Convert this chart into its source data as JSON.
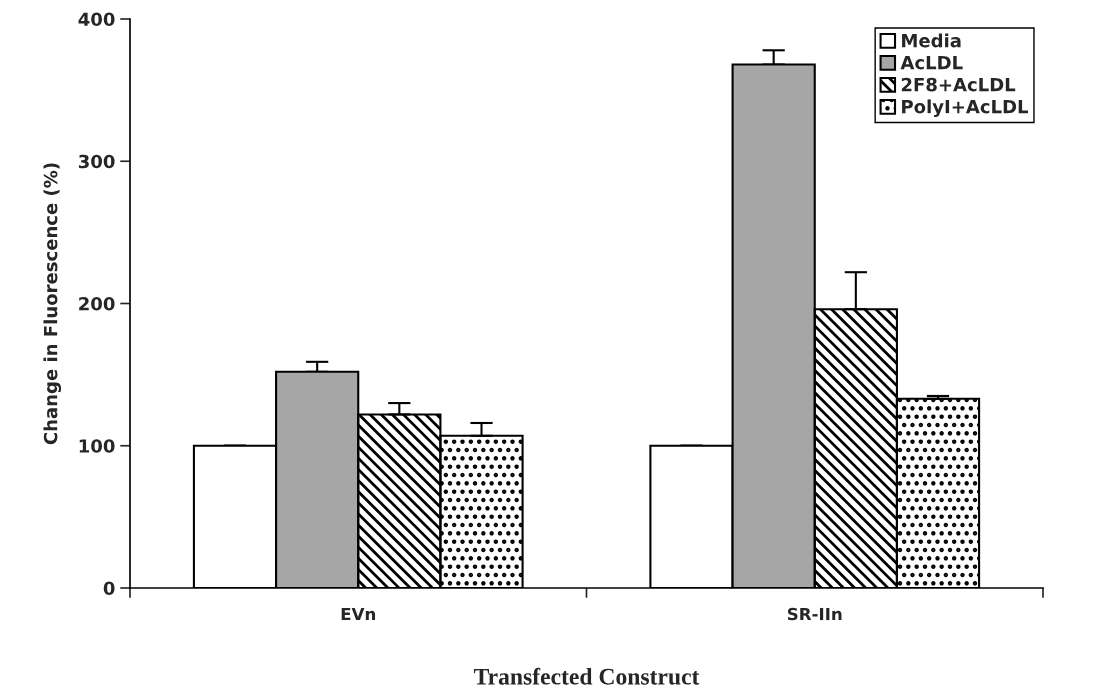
{
  "chart_data": {
    "type": "bar",
    "xlabel": "Transfected Construct",
    "ylabel": "Change in Fluorescence (%)",
    "categories": [
      "EVn",
      "SR-IIn"
    ],
    "series": [
      {
        "name": "Media",
        "color": "#ffffff",
        "values": [
          100,
          100
        ],
        "errors": [
          0,
          0
        ]
      },
      {
        "name": "AcLDL",
        "color": "#a6a6a6",
        "values": [
          152,
          368
        ],
        "errors": [
          7,
          10
        ]
      },
      {
        "name": "2F8+AcLDL",
        "color": "#000000",
        "values": [
          122,
          196
        ],
        "errors": [
          8,
          26
        ]
      },
      {
        "name": "PolyI+AcLDL",
        "color": "#000000",
        "values": [
          107,
          133
        ],
        "errors": [
          9,
          2
        ]
      }
    ],
    "ylim": [
      0,
      400
    ],
    "yticks": [
      0,
      100,
      200,
      300,
      400
    ],
    "grid": false,
    "legend": "top right"
  }
}
